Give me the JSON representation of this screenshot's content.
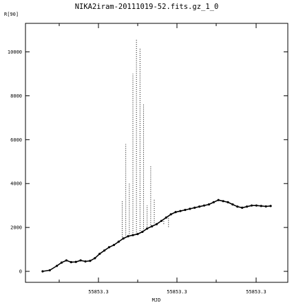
{
  "chart_data": {
    "type": "scatter",
    "title": "NIKA2iram-20111019-52.fits.gz_1_0",
    "xlabel": "MJD",
    "ylabel": "R[90]",
    "ylim": [
      -500,
      11300
    ],
    "xtick_labels": [
      "55853.3",
      "55853.3",
      "55853.3"
    ],
    "ytick_values": [
      0,
      2000,
      4000,
      6000,
      8000,
      10000
    ],
    "ytick_labels": [
      "0",
      "2000",
      "4000",
      "6000",
      "8000",
      "10000"
    ],
    "grid": false,
    "series": [
      {
        "x": [
          0.02,
          0.05,
          0.08,
          0.1,
          0.12,
          0.14,
          0.16,
          0.18,
          0.2,
          0.22,
          0.24,
          0.26,
          0.28,
          0.3,
          0.32,
          0.34,
          0.36,
          0.38,
          0.4,
          0.42,
          0.44,
          0.46,
          0.48,
          0.5,
          0.52,
          0.54,
          0.56,
          0.58,
          0.6,
          0.62,
          0.64,
          0.66,
          0.68,
          0.7,
          0.72,
          0.74,
          0.76,
          0.78,
          0.8,
          0.82,
          0.84,
          0.86,
          0.88,
          0.9,
          0.92,
          0.94,
          0.96,
          0.98
        ],
        "y": [
          0,
          50,
          250,
          400,
          500,
          420,
          430,
          500,
          450,
          480,
          600,
          800,
          950,
          1100,
          1200,
          1350,
          1500,
          1600,
          1650,
          1700,
          1800,
          1950,
          2050,
          2150,
          2300,
          2450,
          2600,
          2700,
          2750,
          2800,
          2850,
          2900,
          2950,
          3000,
          3050,
          3150,
          3250,
          3200,
          3150,
          3050,
          2950,
          2900,
          2950,
          3000,
          3000,
          2980,
          2960,
          2980
        ]
      }
    ],
    "spikes": [
      {
        "x": 0.355,
        "y": 3200
      },
      {
        "x": 0.37,
        "y": 5800
      },
      {
        "x": 0.385,
        "y": 4000
      },
      {
        "x": 0.4,
        "y": 9000
      },
      {
        "x": 0.415,
        "y": 10600
      },
      {
        "x": 0.43,
        "y": 10200
      },
      {
        "x": 0.445,
        "y": 7600
      },
      {
        "x": 0.46,
        "y": 3000
      },
      {
        "x": 0.475,
        "y": 4800
      },
      {
        "x": 0.49,
        "y": 3300
      },
      {
        "x": 0.51,
        "y": 2200
      },
      {
        "x": 0.53,
        "y": 2100
      },
      {
        "x": 0.55,
        "y": 2000
      }
    ]
  }
}
